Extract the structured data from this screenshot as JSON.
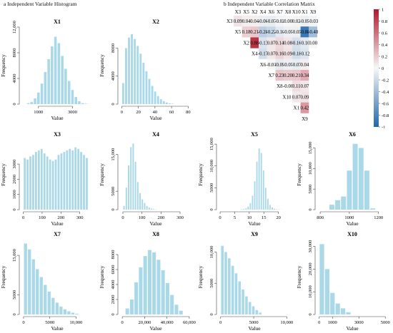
{
  "panels": {
    "a_label": "a Independent Variable Histogram",
    "b_label": "b Independent Variable Correlation Matrix"
  },
  "colors": {
    "bar": "#a9d8e8",
    "negative": "#2166ac",
    "neutral": "#f7f7f7",
    "positive": "#b2182b"
  },
  "chart_data": [
    {
      "type": "bar",
      "title": "X1",
      "xlabel": "Value",
      "ylabel": "Frequency",
      "xlim": [
        0,
        4200
      ],
      "ylim": [
        0,
        12000
      ],
      "xticks": [
        {
          "v": 1000,
          "label": "1000"
        },
        {
          "v": 3000,
          "label": "3000"
        }
      ],
      "yticks": [
        {
          "v": 0,
          "label": "0"
        },
        {
          "v": 4000,
          "label": "4000"
        },
        {
          "v": 8000,
          "label": "8000"
        },
        {
          "v": 12000,
          "label": "12,000"
        }
      ],
      "bin_start": 300,
      "bin_width": 200,
      "values": [
        150,
        350,
        900,
        1800,
        3200,
        5000,
        7000,
        9000,
        10500,
        9500,
        7500,
        5500,
        3600,
        2200,
        1100,
        450,
        150,
        60
      ]
    },
    {
      "type": "bar",
      "title": "X2",
      "xlabel": "Value",
      "ylabel": "Frequency",
      "xlim": [
        -2,
        84
      ],
      "ylim": [
        0,
        11000
      ],
      "xticks": [
        {
          "v": 0,
          "label": "0"
        },
        {
          "v": 20,
          "label": "20"
        },
        {
          "v": 40,
          "label": "40"
        },
        {
          "v": 60,
          "label": "60"
        },
        {
          "v": 80,
          "label": "80"
        }
      ],
      "yticks": [
        {
          "v": 0,
          "label": "0"
        },
        {
          "v": 4000,
          "label": "4000"
        },
        {
          "v": 8000,
          "label": "8000"
        }
      ],
      "bin_start": 0,
      "bin_width": 3.5,
      "values": [
        3000,
        8000,
        9500,
        10000,
        9300,
        8300,
        7200,
        5900,
        4700,
        3600,
        2600,
        1800,
        1150,
        700,
        420,
        240,
        120,
        60
      ]
    },
    {
      "type": "bar",
      "title": "X3",
      "xlabel": "Value",
      "ylabel": "Frequency",
      "xlim": [
        -10,
        370
      ],
      "ylim": [
        0,
        4600
      ],
      "xticks": [
        {
          "v": 0,
          "label": "0"
        },
        {
          "v": 100,
          "label": "100"
        },
        {
          "v": 200,
          "label": "200"
        },
        {
          "v": 300,
          "label": "300"
        }
      ],
      "yticks": [
        {
          "v": 0,
          "label": "0"
        },
        {
          "v": 1000,
          "label": "1000"
        },
        {
          "v": 2000,
          "label": "2000"
        },
        {
          "v": 3000,
          "label": "3000"
        }
      ],
      "bin_start": 0,
      "bin_width": 15,
      "values": [
        3400,
        3300,
        3500,
        3600,
        3800,
        3900,
        4000,
        3700,
        3500,
        3300,
        3200,
        3300,
        3600,
        3700,
        3800,
        3900,
        4000,
        3900,
        4100,
        4000,
        3800,
        3600,
        3400
      ]
    },
    {
      "type": "bar",
      "title": "X4",
      "xlabel": "Value",
      "ylabel": "Frequency",
      "xlim": [
        -15,
        360
      ],
      "ylim": [
        0,
        19000
      ],
      "xticks": [
        {
          "v": 0,
          "label": "0"
        },
        {
          "v": 100,
          "label": "100"
        },
        {
          "v": 200,
          "label": "200"
        },
        {
          "v": 300,
          "label": "300"
        }
      ],
      "yticks": [
        {
          "v": 0,
          "label": "0"
        },
        {
          "v": 5000,
          "label": "5000"
        },
        {
          "v": 15000,
          "label": "15,000"
        }
      ],
      "bin_start": 0,
      "bin_width": 12,
      "values": [
        1000,
        6000,
        12000,
        17000,
        18000,
        13000,
        7500,
        4500,
        2800,
        1800,
        1000,
        600,
        300,
        150,
        70
      ]
    },
    {
      "type": "bar",
      "title": "X5",
      "xlabel": "Value",
      "ylabel": "Frequency",
      "xlim": [
        -0.5,
        24
      ],
      "ylim": [
        0,
        16000
      ],
      "xticks": [
        {
          "v": 0,
          "label": "0"
        },
        {
          "v": 5,
          "label": "5"
        },
        {
          "v": 10,
          "label": "10"
        },
        {
          "v": 15,
          "label": "15"
        },
        {
          "v": 20,
          "label": "20"
        }
      ],
      "yticks": [
        {
          "v": 0,
          "label": "0"
        },
        {
          "v": 5000,
          "label": "5000"
        },
        {
          "v": 10000,
          "label": "10,000"
        },
        {
          "v": 15000,
          "label": "15,000"
        }
      ],
      "bin_start": 7,
      "bin_width": 0.75,
      "values": [
        80,
        150,
        300,
        700,
        1500,
        3200,
        6500,
        11000,
        14000,
        13000,
        9000,
        5000,
        2500,
        1100,
        500,
        220,
        100,
        50,
        30
      ]
    },
    {
      "type": "bar",
      "title": "X6",
      "xlabel": "Value",
      "ylabel": "Frequency",
      "xlim": [
        780,
        1260
      ],
      "ylim": [
        0,
        17000
      ],
      "xticks": [
        {
          "v": 800,
          "label": "800"
        },
        {
          "v": 1000,
          "label": "1000"
        },
        {
          "v": 1200,
          "label": "1200"
        }
      ],
      "yticks": [
        {
          "v": 0,
          "label": "0"
        },
        {
          "v": 5000,
          "label": "5000"
        },
        {
          "v": 10000,
          "label": "10,000"
        },
        {
          "v": 15000,
          "label": "15,000"
        }
      ],
      "bin_start": 860,
      "bin_width": 40,
      "values": [
        1200,
        2300,
        3200,
        9500,
        16000,
        15000,
        9500,
        300
      ]
    },
    {
      "type": "bar",
      "title": "X7",
      "xlabel": "Value",
      "ylabel": "Frequency",
      "xlim": [
        -400,
        13200
      ],
      "ylim": [
        0,
        19000
      ],
      "xticks": [
        {
          "v": 0,
          "label": "0"
        },
        {
          "v": 5000,
          "label": "5000"
        },
        {
          "v": 10000,
          "label": "10,000"
        }
      ],
      "yticks": [
        {
          "v": 0,
          "label": "0"
        },
        {
          "v": 5000,
          "label": "5000"
        },
        {
          "v": 15000,
          "label": "15,000"
        }
      ],
      "bin_start": 0,
      "bin_width": 750,
      "values": [
        18000,
        16500,
        14000,
        11500,
        9500,
        7500,
        5800,
        4200,
        3000,
        2000,
        1300,
        800,
        450,
        200
      ]
    },
    {
      "type": "bar",
      "title": "X8",
      "xlabel": "Value",
      "ylabel": "Frequency",
      "xlim": [
        -2000,
        62000
      ],
      "ylim": [
        0,
        10000
      ],
      "xticks": [
        {
          "v": 0,
          "label": "0"
        },
        {
          "v": 20000,
          "label": "20,000"
        },
        {
          "v": 40000,
          "label": "40,000"
        },
        {
          "v": 60000,
          "label": "60,000"
        }
      ],
      "yticks": [
        {
          "v": 0,
          "label": "0"
        },
        {
          "v": 2000,
          "label": "2000"
        },
        {
          "v": 4000,
          "label": "4000"
        },
        {
          "v": 6000,
          "label": "6000"
        },
        {
          "v": 8000,
          "label": "8000"
        }
      ],
      "bin_start": 2500,
      "bin_width": 4000,
      "values": [
        800,
        2000,
        4300,
        6300,
        7800,
        8600,
        8300,
        7300,
        5900,
        4200,
        2600,
        1300,
        500
      ]
    },
    {
      "type": "bar",
      "title": "X9",
      "xlabel": "Value",
      "ylabel": "Frequency",
      "xlim": [
        -300,
        10500
      ],
      "ylim": [
        0,
        12000
      ],
      "xticks": [
        {
          "v": 0,
          "label": "0"
        },
        {
          "v": 5000,
          "label": "5000"
        },
        {
          "v": 10000,
          "label": "10,000"
        }
      ],
      "yticks": [
        {
          "v": 0,
          "label": "0"
        },
        {
          "v": 5000,
          "label": "5000"
        },
        {
          "v": 10000,
          "label": "10,000"
        }
      ],
      "bin_start": 0,
      "bin_width": 520,
      "values": [
        11000,
        10000,
        9000,
        7800,
        6600,
        5300,
        4000,
        2900,
        2000,
        1300,
        700,
        300
      ]
    },
    {
      "type": "bar",
      "title": "X10",
      "xlabel": "Value",
      "ylabel": "Frequency",
      "xlim": [
        -150,
        5150
      ],
      "ylim": [
        0,
        33000
      ],
      "xticks": [
        {
          "v": 0,
          "label": "0"
        },
        {
          "v": 1000,
          "label": "1000"
        },
        {
          "v": 3000,
          "label": "3000"
        },
        {
          "v": 5000,
          "label": "5000"
        }
      ],
      "yticks": [
        {
          "v": 0,
          "label": "0"
        },
        {
          "v": 10000,
          "label": "10,000"
        },
        {
          "v": 20000,
          "label": "20,000"
        },
        {
          "v": 30000,
          "label": "30,000"
        }
      ],
      "bin_start": 0,
      "bin_width": 400,
      "values": [
        31000,
        20000,
        9500,
        4800,
        2700,
        1000
      ]
    },
    {
      "type": "heatmap",
      "layout": "upper-triangular",
      "variables": [
        "X3",
        "X5",
        "X2",
        "X4",
        "X6",
        "X7",
        "X8",
        "X10",
        "X1",
        "X9"
      ],
      "cells": [
        {
          "row": 0,
          "col": 1,
          "value": 0.09
        },
        {
          "row": 0,
          "col": 2,
          "value": 0.04
        },
        {
          "row": 0,
          "col": 3,
          "value": 0.04
        },
        {
          "row": 0,
          "col": 4,
          "value": -0.06
        },
        {
          "row": 0,
          "col": 5,
          "value": -0.07
        },
        {
          "row": 0,
          "col": 6,
          "value": -0.02
        },
        {
          "row": 0,
          "col": 7,
          "value": 0.0
        },
        {
          "row": 0,
          "col": 8,
          "value": 0.02
        },
        {
          "row": 0,
          "col": 9,
          "value": -0.05
        },
        {
          "row": 0,
          "col": 10,
          "value": -0.03
        },
        {
          "row": 1,
          "col": 2,
          "value": 0.18
        },
        {
          "row": 1,
          "col": 3,
          "value": 0.21
        },
        {
          "row": 1,
          "col": 4,
          "value": -0.28
        },
        {
          "row": 1,
          "col": 5,
          "value": -0.22
        },
        {
          "row": 1,
          "col": 6,
          "value": -0.1
        },
        {
          "row": 1,
          "col": 7,
          "value": -0.05
        },
        {
          "row": 1,
          "col": 8,
          "value": -0.05
        },
        {
          "row": 1,
          "col": 9,
          "value": -0.88
        },
        {
          "row": 1,
          "col": 10,
          "value": -0.4
        },
        {
          "row": 2,
          "col": 3,
          "value": 0.88
        },
        {
          "row": 2,
          "col": 4,
          "value": -0.13
        },
        {
          "row": 2,
          "col": 5,
          "value": 0.07
        },
        {
          "row": 2,
          "col": 6,
          "value": 0.14
        },
        {
          "row": 2,
          "col": 7,
          "value": 0.08
        },
        {
          "row": 2,
          "col": 8,
          "value": -0.16
        },
        {
          "row": 2,
          "col": 9,
          "value": -0.1
        },
        {
          "row": 2,
          "col": 10,
          "value": 0.0
        },
        {
          "row": 3,
          "col": 4,
          "value": -0.17
        },
        {
          "row": 3,
          "col": 5,
          "value": 0.07
        },
        {
          "row": 3,
          "col": 6,
          "value": 0.16
        },
        {
          "row": 3,
          "col": 7,
          "value": 0.09
        },
        {
          "row": 3,
          "col": 8,
          "value": -0.18
        },
        {
          "row": 3,
          "col": 9,
          "value": -0.12
        },
        {
          "row": 4,
          "col": 5,
          "value": -0.01
        },
        {
          "row": 4,
          "col": 6,
          "value": -0.09
        },
        {
          "row": 4,
          "col": 7,
          "value": -0.05
        },
        {
          "row": 4,
          "col": 8,
          "value": -0.07
        },
        {
          "row": 4,
          "col": 9,
          "value": 0.04
        },
        {
          "row": 5,
          "col": 6,
          "value": 0.23
        },
        {
          "row": 5,
          "col": 7,
          "value": 0.2
        },
        {
          "row": 5,
          "col": 8,
          "value": 0.21
        },
        {
          "row": 5,
          "col": 9,
          "value": 0.34
        },
        {
          "row": 6,
          "col": 7,
          "value": -0.0
        },
        {
          "row": 6,
          "col": 8,
          "value": 0.11
        },
        {
          "row": 6,
          "col": 9,
          "value": 0.07
        },
        {
          "row": 7,
          "col": 8,
          "value": 0.07
        },
        {
          "row": 7,
          "col": 9,
          "value": 0.09
        },
        {
          "row": 8,
          "col": 9,
          "value": 0.42
        }
      ],
      "colorbar_ticks": [
        {
          "v": 1,
          "label": "1"
        },
        {
          "v": 0.8,
          "label": "0.8"
        },
        {
          "v": 0.6,
          "label": "0.6"
        },
        {
          "v": 0.4,
          "label": "0.4"
        },
        {
          "v": 0.2,
          "label": "0.2"
        },
        {
          "v": 0,
          "label": "0"
        },
        {
          "v": -0.2,
          "label": "-0.2"
        },
        {
          "v": -0.4,
          "label": "-0.4"
        },
        {
          "v": -0.6,
          "label": "-0.6"
        },
        {
          "v": -0.8,
          "label": "-0.8"
        },
        {
          "v": -1,
          "label": "-1"
        }
      ],
      "colorbar_range": [
        -1,
        1
      ]
    }
  ]
}
